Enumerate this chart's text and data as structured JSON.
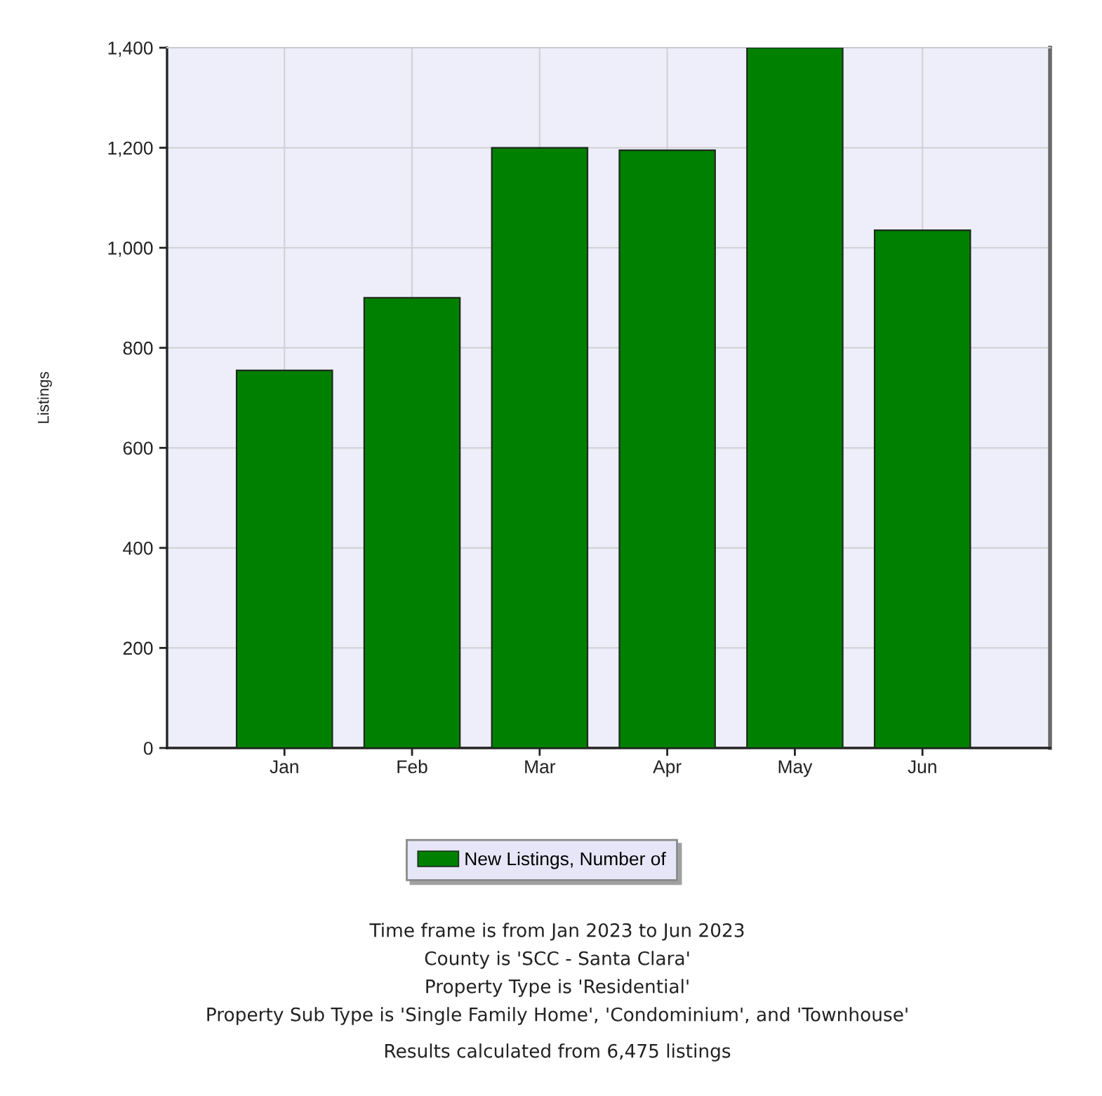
{
  "chart_data": {
    "type": "bar",
    "ylabel": "Listings",
    "categories": [
      "Jan",
      "Feb",
      "Mar",
      "Apr",
      "May",
      "Jun"
    ],
    "series": [
      {
        "name": "New Listings, Number of",
        "color": "#008000",
        "values": [
          755,
          900,
          1200,
          1195,
          1400,
          1035
        ]
      }
    ],
    "ylim": [
      0,
      1400
    ],
    "yticks": [
      0,
      200,
      400,
      600,
      800,
      {
        "value": 1000,
        "label": "1,000"
      },
      {
        "value": 1200,
        "label": "1,200"
      },
      {
        "value": 1400,
        "label": "1,400"
      }
    ],
    "grid": true,
    "legend": "bottom",
    "annotations": [
      "Time frame is from Jan 2023 to Jun 2023",
      "County is 'SCC - Santa Clara'",
      "Property Type is 'Residential'",
      "Property Sub Type is 'Single Family Home', 'Condominium', and 'Townhouse'",
      "Results calculated from 6,475 listings"
    ]
  }
}
